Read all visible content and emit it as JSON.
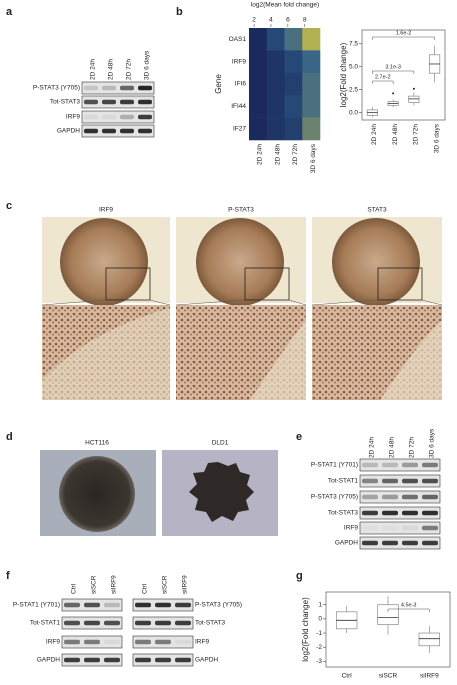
{
  "panels": {
    "a": {
      "label": "a",
      "lanes": [
        "2D 24h",
        "2D 48h",
        "2D 72h",
        "3D 6 days"
      ],
      "rows": [
        "P-STAT3 (Y705)",
        "Tot-STAT3",
        "IRF9",
        "GAPDH"
      ]
    },
    "c": {
      "label": "c",
      "titles": [
        "IRF9",
        "P-STAT3",
        "STAT3"
      ]
    },
    "d": {
      "label": "d",
      "titles": [
        "HCT116",
        "DLD1"
      ]
    },
    "e": {
      "label": "e",
      "lanes": [
        "2D 24h",
        "2D 48h",
        "2D 72h",
        "3D 6 days"
      ],
      "rows": [
        "P-STAT1 (Y701)",
        "Tot-STAT1",
        "P-STAT3 (Y705)",
        "Tot-STAT3",
        "IRF9",
        "GAPDH"
      ]
    },
    "f": {
      "label": "f",
      "lanes": [
        "Ctrl",
        "siSCR",
        "siIRF9"
      ],
      "left_rows": [
        "P-STAT1 (Y701)",
        "Tot-STAT1",
        "IRF9",
        "GAPDH"
      ],
      "right_rows": [
        "P-STAT3 (Y705)",
        "Tot-STAT3",
        "IRF9",
        "GAPDH"
      ]
    }
  },
  "chart_data": [
    {
      "type": "heatmap",
      "panel_label": "b",
      "title": "log2(Mean fold change)",
      "ylabel": "Gene",
      "categories": [
        "2D 24h",
        "2D 48h",
        "2D 72h",
        "3D 6 days"
      ],
      "rows": [
        "OAS1",
        "IRF9",
        "IFI6",
        "IFI44",
        "IF27"
      ],
      "values": [
        [
          1,
          3,
          5,
          8
        ],
        [
          1,
          2,
          3,
          4.5
        ],
        [
          0.5,
          2,
          2.5,
          5
        ],
        [
          0.5,
          2,
          3,
          5
        ],
        [
          0.5,
          2,
          2.5,
          6
        ]
      ],
      "clim": [
        1.4,
        9.8
      ],
      "cticks": [
        2,
        4,
        6,
        8
      ],
      "colormap": [
        "#1b2a5c",
        "#2f5f8a",
        "#8c9660",
        "#f3e03a"
      ]
    },
    {
      "type": "box",
      "ylabel": "log2(Fold change)",
      "categories": [
        "2D 24h",
        "2D 48h",
        "2D 72h",
        "3D 6 days"
      ],
      "boxes": [
        {
          "whislo": -0.5,
          "q1": -0.3,
          "median": 0,
          "q3": 0.3,
          "whishi": 0.6,
          "fliers": []
        },
        {
          "whislo": 0.6,
          "q1": 0.8,
          "median": 1.0,
          "q3": 1.2,
          "whishi": 1.4,
          "fliers": [
            2.1
          ]
        },
        {
          "whislo": 0.8,
          "q1": 1.1,
          "median": 1.5,
          "q3": 1.8,
          "whishi": 2.2,
          "fliers": [
            2.6
          ]
        },
        {
          "whislo": 3.3,
          "q1": 4.3,
          "median": 5.3,
          "q3": 6.3,
          "whishi": 7.3,
          "fliers": []
        }
      ],
      "ylim": [
        -0.8,
        9.0
      ],
      "yticks": [
        {
          "value": 0,
          "label": "0.0"
        },
        2.5,
        {
          "value": 5,
          "label": "5.0"
        },
        7.5
      ],
      "annotations": [
        "1.6e-2",
        "2.7e-2",
        "3.1e-3"
      ],
      "color": "#888888"
    },
    {
      "type": "box",
      "panel_label": "g",
      "ylabel": "log2(Fold change)",
      "categories": [
        "Ctrl",
        "siSCR",
        "siIRF9"
      ],
      "boxes": [
        {
          "whislo": -1.0,
          "q1": -0.7,
          "median": -0.1,
          "q3": 0.5,
          "whishi": 0.9,
          "fliers": []
        },
        {
          "whislo": -1.1,
          "q1": -0.4,
          "median": 0.1,
          "q3": 1.0,
          "whishi": 1.6,
          "fliers": []
        },
        {
          "whislo": -2.4,
          "q1": -1.9,
          "median": -1.4,
          "q3": -1.0,
          "whishi": -0.5,
          "fliers": []
        }
      ],
      "ylim": [
        -3.4,
        1.9
      ],
      "yticks": [
        1,
        0,
        -1,
        -2,
        -3
      ],
      "annotations": [
        "4.5e-3"
      ],
      "color": "#888888"
    }
  ]
}
